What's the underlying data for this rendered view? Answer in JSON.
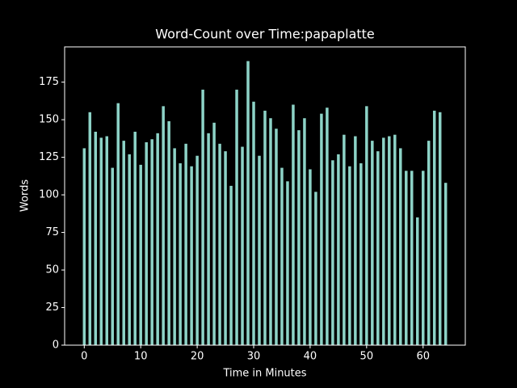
{
  "chart_data": {
    "type": "bar",
    "title": "Word-Count over Time:papaplatte",
    "xlabel": "Time in Minutes",
    "ylabel": "Words",
    "x": [
      0,
      1,
      2,
      3,
      4,
      5,
      6,
      7,
      8,
      9,
      10,
      11,
      12,
      13,
      14,
      15,
      16,
      17,
      18,
      19,
      20,
      21,
      22,
      23,
      24,
      25,
      26,
      27,
      28,
      29,
      30,
      31,
      32,
      33,
      34,
      35,
      36,
      37,
      38,
      39,
      40,
      41,
      42,
      43,
      44,
      45,
      46,
      47,
      48,
      49,
      50,
      51,
      52,
      53,
      54,
      55,
      56,
      57,
      58,
      59,
      60,
      61,
      62,
      63,
      64
    ],
    "values": [
      131,
      155,
      142,
      138,
      139,
      118,
      161,
      136,
      127,
      142,
      120,
      135,
      137,
      141,
      159,
      149,
      131,
      121,
      134,
      119,
      126,
      170,
      141,
      148,
      134,
      129,
      106,
      170,
      132,
      189,
      162,
      126,
      156,
      151,
      144,
      118,
      109,
      160,
      143,
      151,
      117,
      102,
      154,
      158,
      123,
      127,
      140,
      119,
      139,
      121,
      159,
      136,
      129,
      138,
      139,
      140,
      131,
      116,
      116,
      85,
      116,
      136,
      156,
      155,
      108
    ],
    "color": "#8dd3c7",
    "bar_width": 0.5,
    "xlim": [
      -3.475,
      67.475
    ],
    "xticks": [
      0,
      10,
      20,
      30,
      40,
      50,
      60
    ],
    "ylim": [
      0,
      198.45
    ],
    "yticks": [
      0,
      25,
      50,
      75,
      100,
      125,
      150,
      175
    ]
  }
}
